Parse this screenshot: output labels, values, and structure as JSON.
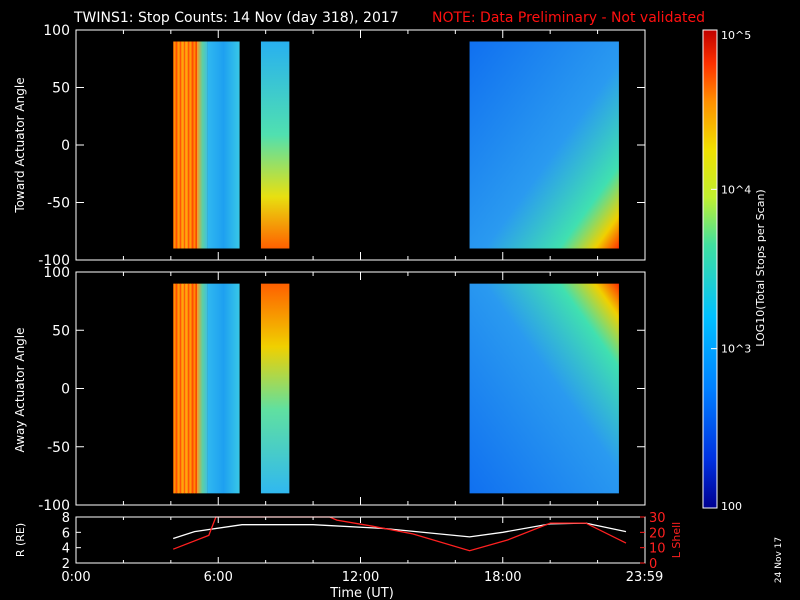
{
  "chart_data": {
    "type": "heatmap",
    "title": "TWINS1: Stop Counts: 14 Nov (day 318), 2017",
    "note": "NOTE: Data Preliminary - Not validated",
    "xlabel": "Time (UT)",
    "x_ticks": [
      "0:00",
      "6:00",
      "12:00",
      "18:00",
      "23:59"
    ],
    "x_range_hours": [
      0,
      24
    ],
    "stamp": "24 Nov 17",
    "colorbar": {
      "label": "LOG10(Total Stops per Scan)",
      "range": [
        100,
        100000
      ],
      "ticks": [
        {
          "label": "100",
          "value": 100
        },
        {
          "label": "10^3",
          "value": 1000
        },
        {
          "label": "10^4",
          "value": 10000
        },
        {
          "label": "10^5",
          "value": 100000
        }
      ],
      "scale": "log",
      "colormap": [
        "#000090",
        "#0050ff",
        "#00b0ff",
        "#30e0c0",
        "#a0f040",
        "#f0f000",
        "#ffa000",
        "#ff4000",
        "#d00000"
      ]
    },
    "panels": [
      {
        "id": "toward",
        "ylabel": "Toward Actuator Angle",
        "ylim": [
          -100,
          100
        ],
        "yticks": [
          100,
          50,
          0,
          -50,
          -100
        ],
        "data_y_range": [
          -90,
          90
        ],
        "blocks": [
          {
            "t_start": 4.1,
            "t_end": 5.1,
            "level": 0.92
          },
          {
            "t_start": 5.1,
            "t_end": 5.55,
            "level": 0.7
          },
          {
            "t_start": 5.55,
            "t_end": 6.9,
            "level": 0.36
          },
          {
            "t_start": 7.8,
            "t_end": 9.0,
            "level": 0.55
          },
          {
            "t_start": 16.6,
            "t_end": 22.9,
            "level": 0.3
          }
        ]
      },
      {
        "id": "away",
        "ylabel": "Away Actuator Angle",
        "ylim": [
          -100,
          100
        ],
        "yticks": [
          100,
          50,
          0,
          -50,
          -100
        ],
        "data_y_range": [
          -90,
          90
        ],
        "blocks": [
          {
            "t_start": 4.1,
            "t_end": 5.1,
            "level": 0.9
          },
          {
            "t_start": 5.1,
            "t_end": 5.55,
            "level": 0.62
          },
          {
            "t_start": 5.55,
            "t_end": 6.9,
            "level": 0.38
          },
          {
            "t_start": 7.8,
            "t_end": 9.0,
            "level": 0.5
          },
          {
            "t_start": 16.6,
            "t_end": 22.9,
            "level": 0.3
          }
        ]
      }
    ],
    "orbit_panel": {
      "left_label": "R (RE)",
      "right_label": "L Shell",
      "left_ylim": [
        2,
        8
      ],
      "left_yticks": [
        8,
        6,
        4,
        2
      ],
      "right_ylim": [
        0,
        30
      ],
      "right_yticks": [
        30,
        20,
        10,
        0
      ],
      "series": [
        {
          "name": "R",
          "axis": "left",
          "color": "#ffffff",
          "x": [
            4.1,
            5,
            7,
            10,
            13,
            16.6,
            18,
            20,
            21.5,
            23.2
          ],
          "y": [
            5.2,
            6.1,
            7.0,
            7.0,
            6.5,
            5.4,
            6.0,
            7.1,
            7.2,
            6.1
          ]
        },
        {
          "name": "L Shell",
          "axis": "right",
          "color": "#ff2020",
          "x": [
            4.1,
            5.6,
            5.9,
            10.7,
            11.0,
            12.5,
            14.2,
            16.6,
            18.2,
            20,
            21.5,
            23.2
          ],
          "y": [
            9,
            18,
            30,
            30,
            28,
            24,
            19,
            8,
            15,
            26,
            26,
            13
          ]
        }
      ]
    }
  }
}
